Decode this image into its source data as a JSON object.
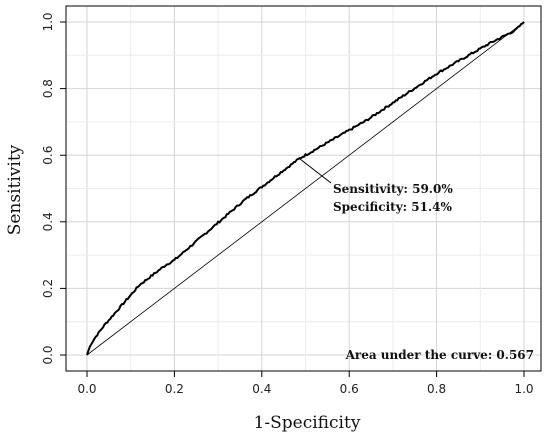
{
  "chart_data": {
    "type": "line",
    "title": "",
    "xlabel": "1-Specificity",
    "ylabel": "Sensitivity",
    "xlim": [
      0.0,
      1.0
    ],
    "ylim": [
      0.0,
      1.0
    ],
    "x_ticks": [
      "0.0",
      "0.2",
      "0.4",
      "0.6",
      "0.8",
      "1.0"
    ],
    "y_ticks": [
      "0.0",
      "0.2",
      "0.4",
      "0.6",
      "0.8",
      "1.0"
    ],
    "grid": true,
    "series": [
      {
        "x": [
          0.0,
          0.005,
          0.01,
          0.02,
          0.04,
          0.06,
          0.08,
          0.1,
          0.12,
          0.14,
          0.16,
          0.18,
          0.2,
          0.24,
          0.28,
          0.32,
          0.36,
          0.4,
          0.44,
          0.486,
          0.52,
          0.56,
          0.6,
          0.64,
          0.68,
          0.72,
          0.76,
          0.8,
          0.84,
          0.88,
          0.92,
          0.95,
          0.98,
          1.0
        ],
        "y": [
          0.0,
          0.02,
          0.035,
          0.055,
          0.09,
          0.12,
          0.15,
          0.18,
          0.21,
          0.23,
          0.25,
          0.27,
          0.285,
          0.33,
          0.375,
          0.42,
          0.465,
          0.505,
          0.545,
          0.59,
          0.615,
          0.645,
          0.675,
          0.705,
          0.74,
          0.775,
          0.81,
          0.845,
          0.875,
          0.905,
          0.935,
          0.955,
          0.975,
          1.0
        ],
        "color": "#000000"
      }
    ],
    "reference_line": {
      "x": [
        0.0,
        1.0
      ],
      "y": [
        0.0,
        1.0
      ]
    },
    "marked_point": {
      "x": 0.486,
      "y": 0.59
    },
    "annotations": {
      "sensitivity": "Sensitivity: 59.0%",
      "specificity": "Specificity: 51.4%",
      "auc": "Area under the curve: 0.567"
    }
  }
}
